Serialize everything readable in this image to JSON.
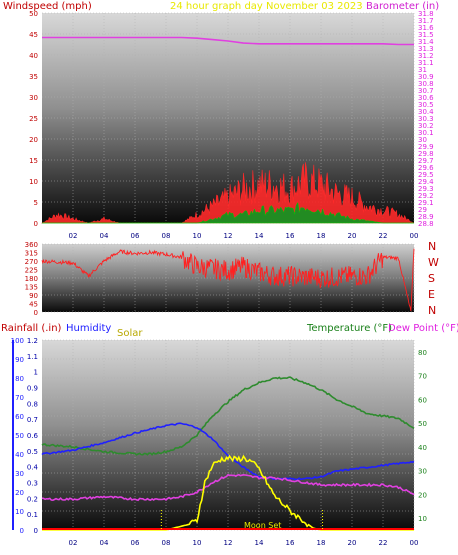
{
  "header": {
    "left_label": "Windspeed (mph)",
    "center_label": "24 hour graph day   November 03 2023",
    "right_label": "Barometer (in)"
  },
  "direction_labels": [
    "N",
    "W",
    "S",
    "E",
    "N"
  ],
  "bottom_header": {
    "rain_label": "Rainfall (.in)",
    "humidity_label": "Humidity",
    "solar_label": "Solar",
    "temp_label": "Temperature (°F)",
    "dew_label": "Dew Point (°F)"
  },
  "moon_label": "Moon Set",
  "colors": {
    "wind_gust": "#ff2a2a",
    "wind_avg": "#228b22",
    "wind_avg2": "#00cc00",
    "barometer": "#e040e0",
    "direction": "#ff2020",
    "temperature": "#2e8b2e",
    "humidity": "#2020ff",
    "dewpoint": "#e040e0",
    "solar": "#ffff00",
    "rain": "#ff0000",
    "left_axis_dark": "#c00000",
    "humidity_axis": "#2020ff",
    "temp_axis": "#1a801a",
    "baro_axis": "#e020e0"
  },
  "chart_data": [
    {
      "type": "line",
      "panel": "wind_barometer",
      "x": [
        "02",
        "04",
        "06",
        "08",
        "10",
        "12",
        "14",
        "16",
        "18",
        "20",
        "22",
        "00"
      ],
      "ylabel": "Windspeed (mph)",
      "ylim": [
        0,
        50
      ],
      "yticks": [
        0,
        5,
        10,
        15,
        20,
        25,
        30,
        35,
        40,
        45,
        50
      ],
      "y2label": "Barometer (in)",
      "y2lim": [
        28.8,
        31.8
      ],
      "y2ticks": [
        "28.8",
        "28.9",
        "29",
        "29.1",
        "29.2",
        "29.3",
        "29.4",
        "29.5",
        "29.6",
        "29.7",
        "29.8",
        "29.9",
        "30",
        "30.1",
        "30.2",
        "30.3",
        "30.4",
        "30.5",
        "30.6",
        "30.7",
        "30.8",
        "30.9",
        "31",
        "31.1",
        "31.2",
        "31.3",
        "31.4",
        "31.5",
        "31.6",
        "31.7",
        "31.8"
      ],
      "barometer": {
        "hours": [
          0,
          2,
          4,
          6,
          8,
          9,
          10,
          11,
          12,
          13,
          14,
          15,
          16,
          17,
          18,
          19,
          20,
          21,
          22,
          23,
          24
        ],
        "values": [
          31.45,
          31.45,
          31.45,
          31.45,
          31.45,
          31.45,
          31.44,
          31.42,
          31.4,
          31.37,
          31.36,
          31.36,
          31.36,
          31.36,
          31.36,
          31.36,
          31.36,
          31.36,
          31.36,
          31.35,
          31.35
        ]
      },
      "wind_gust": {
        "hours": [
          0,
          1,
          2,
          3,
          4,
          5,
          6,
          7,
          8,
          9,
          10,
          11,
          12,
          13,
          14,
          15,
          16,
          17,
          18,
          19,
          20,
          21,
          22,
          23,
          24
        ],
        "values": [
          0,
          2,
          1,
          0,
          1,
          0,
          0,
          0,
          0,
          0,
          2,
          4,
          6,
          8,
          9,
          9,
          8,
          10,
          9,
          7,
          6,
          4,
          3,
          2,
          0
        ]
      },
      "wind_avg": {
        "hours": [
          0,
          4,
          8,
          10,
          11,
          12,
          13,
          14,
          15,
          16,
          17,
          18,
          19,
          20,
          22,
          24
        ],
        "values": [
          0,
          0,
          0,
          0,
          1,
          2,
          2,
          3,
          3,
          3,
          4,
          3,
          2,
          1,
          0,
          0
        ]
      }
    },
    {
      "type": "line",
      "panel": "wind_direction",
      "x": [
        "02",
        "04",
        "06",
        "08",
        "10",
        "12",
        "14",
        "16",
        "18",
        "20",
        "22",
        "00"
      ],
      "ylim": [
        0,
        360
      ],
      "yticks": [
        0,
        45,
        90,
        135,
        180,
        225,
        270,
        315,
        360
      ],
      "direction": {
        "hours": [
          0,
          1,
          2,
          3,
          4,
          5,
          6,
          7,
          8,
          9,
          10,
          11,
          12,
          13,
          14,
          15,
          16,
          17,
          18,
          19,
          20,
          21,
          22,
          23,
          23.8,
          24
        ],
        "values": [
          270,
          265,
          260,
          190,
          270,
          320,
          310,
          315,
          305,
          290,
          240,
          230,
          220,
          240,
          210,
          190,
          190,
          185,
          180,
          185,
          190,
          190,
          290,
          285,
          0,
          340
        ]
      }
    },
    {
      "type": "line",
      "panel": "temp_humidity_solar",
      "x": [
        "02",
        "04",
        "06",
        "08",
        "10",
        "12",
        "14",
        "16",
        "18",
        "20",
        "22",
        "00"
      ],
      "rain_lim": [
        0,
        1.2
      ],
      "rain_ticks": [
        "0",
        "0.1",
        "0.2",
        "0.3",
        "0.4",
        "0.5",
        "0.6",
        "0.7",
        "0.8",
        "0.9",
        "1",
        "1.1",
        "1.2"
      ],
      "humidity_lim": [
        0,
        100
      ],
      "humidity_ticks": [
        0,
        10,
        20,
        30,
        40,
        50,
        60,
        70,
        80,
        90,
        100
      ],
      "temp_lim": [
        5,
        85
      ],
      "temp_ticks": [
        10,
        20,
        30,
        40,
        50,
        60,
        70,
        80
      ],
      "temperature": {
        "hours": [
          0,
          2,
          4,
          6,
          7,
          8,
          9,
          10,
          11,
          12,
          13,
          14,
          15,
          16,
          17,
          18,
          19,
          20,
          21,
          22,
          23,
          24
        ],
        "values": [
          41,
          40,
          38,
          37,
          37,
          38,
          40,
          45,
          53,
          59,
          64,
          67,
          69,
          69,
          67,
          64,
          60,
          57,
          54,
          53,
          52,
          48
        ]
      },
      "humidity": {
        "hours": [
          0,
          2,
          4,
          6,
          8,
          9,
          10,
          11,
          12,
          13,
          14,
          15,
          16,
          17,
          18,
          19,
          20,
          21,
          22,
          23,
          24
        ],
        "values": [
          40,
          42,
          46,
          51,
          55,
          56,
          54,
          48,
          39,
          33,
          28,
          27,
          27,
          27,
          28,
          31,
          32,
          33,
          34,
          35,
          36
        ]
      },
      "dewpoint": {
        "hours": [
          0,
          2,
          4,
          6,
          8,
          9,
          10,
          11,
          12,
          13,
          14,
          15,
          16,
          17,
          18,
          19,
          20,
          21,
          22,
          23,
          24
        ],
        "values": [
          18,
          18,
          19,
          18,
          18,
          19,
          21,
          25,
          28,
          28,
          27,
          27,
          26,
          25,
          24,
          24,
          24,
          24,
          24,
          23,
          20
        ]
      },
      "solar": {
        "hours": [
          0,
          7,
          8,
          9,
          9.5,
          10,
          10.5,
          11,
          11.5,
          12,
          12.5,
          13,
          13.5,
          14,
          14.5,
          15,
          16,
          17,
          17.5,
          18,
          24
        ],
        "values": [
          0,
          0,
          0,
          0.2,
          0.3,
          0.5,
          2.5,
          3.4,
          3.7,
          3.8,
          3.7,
          3.8,
          3.6,
          3.2,
          2.5,
          1.8,
          1.0,
          0.4,
          0.1,
          0,
          0
        ]
      },
      "sunrise_hour": 7.7,
      "sunset_hour": 18.1
    }
  ]
}
